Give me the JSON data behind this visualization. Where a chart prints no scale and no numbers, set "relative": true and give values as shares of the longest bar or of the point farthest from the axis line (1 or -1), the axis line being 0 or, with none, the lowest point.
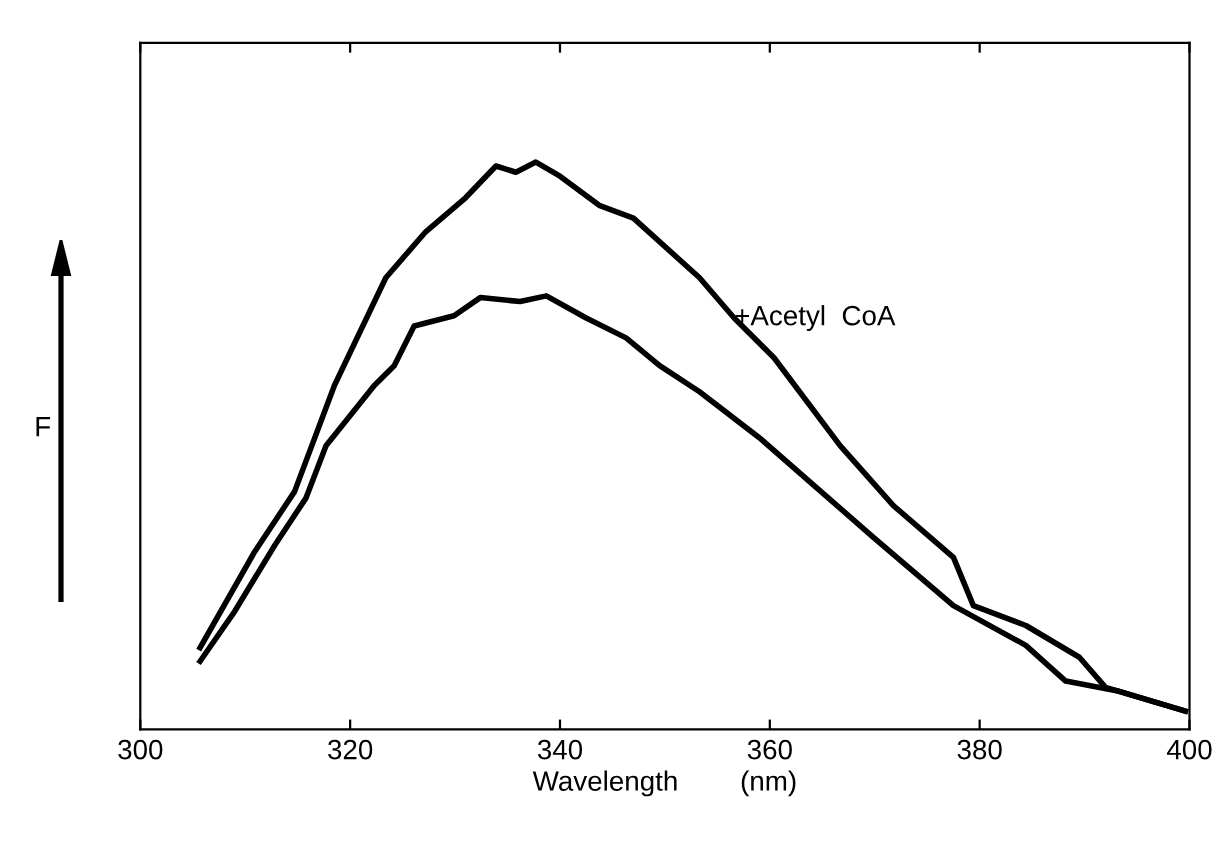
{
  "chart_data": {
    "type": "line",
    "relative": true,
    "xlabel": "Wavelength        (nm)",
    "ylabel": "F",
    "xlim": [
      300,
      400
    ],
    "xticks": [
      300,
      320,
      340,
      360,
      380,
      400
    ],
    "tick_labels": "x",
    "grid": false,
    "legend": false,
    "marker": "none",
    "line_style": "solid",
    "series": [
      {
        "name": "+Acetyl  CoA",
        "color": "#000000",
        "x": [
          305.7,
          310.9,
          314.7,
          318.5,
          323.4,
          327.2,
          331.0,
          333.9,
          335.8,
          337.7,
          340.0,
          343.8,
          347.0,
          353.3,
          356.6,
          360.4,
          366.7,
          371.8,
          377.5,
          379.4,
          384.4,
          389.5,
          392.0,
          399.6
        ],
        "values": [
          0.144,
          0.313,
          0.419,
          0.606,
          0.796,
          0.877,
          0.937,
          0.993,
          0.982,
          1.0,
          0.975,
          0.923,
          0.901,
          0.796,
          0.725,
          0.655,
          0.5,
          0.394,
          0.303,
          0.218,
          0.183,
          0.127,
          0.074,
          0.032
        ]
      },
      {
        "color": "#000000",
        "x": [
          305.7,
          309.0,
          312.8,
          315.8,
          317.7,
          322.3,
          324.2,
          326.1,
          329.9,
          332.4,
          336.2,
          338.7,
          342.5,
          346.3,
          349.5,
          353.3,
          359.0,
          364.2,
          369.9,
          377.5,
          384.4,
          388.2,
          393.3,
          399.6
        ],
        "values": [
          0.12,
          0.208,
          0.324,
          0.408,
          0.5,
          0.606,
          0.641,
          0.711,
          0.729,
          0.761,
          0.754,
          0.764,
          0.725,
          0.69,
          0.641,
          0.595,
          0.514,
          0.43,
          0.338,
          0.218,
          0.148,
          0.085,
          0.067,
          0.032
        ]
      }
    ]
  }
}
